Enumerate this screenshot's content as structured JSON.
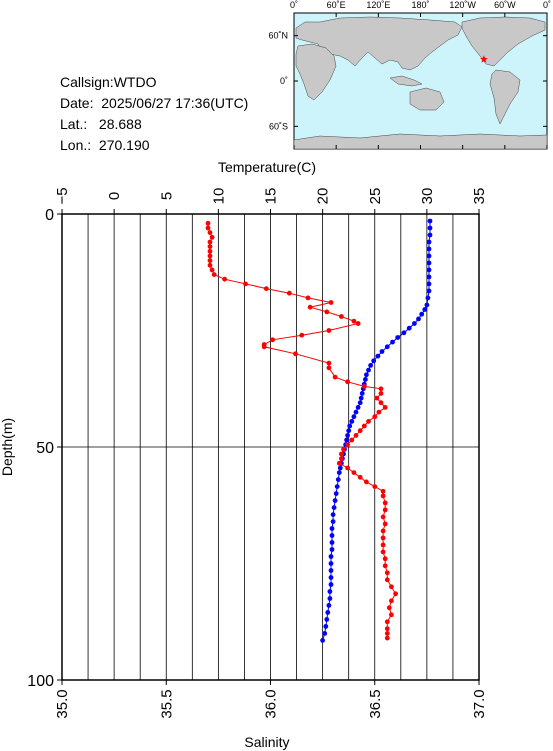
{
  "header": {
    "callsign_label": "Callsign:",
    "callsign": "WTDO",
    "date_label": "Date:",
    "date": "2025/06/27 17:36(UTC)",
    "lat_label": "Lat.:",
    "lat": "28.688",
    "lon_label": "Lon.:",
    "lon": "270.190"
  },
  "map": {
    "lon_ticks": [
      "0˚",
      "60˚E",
      "120˚E",
      "180˚",
      "120˚W",
      "60˚W",
      "0˚"
    ],
    "lat_ticks": [
      "60˚N",
      "0˚",
      "60˚S"
    ],
    "ocean_color": "#cdf3fb",
    "land_color": "#c8c8c8",
    "marker_color": "#ff0000",
    "marker_lat": 28.688,
    "marker_lon": 270.19
  },
  "chart_data": {
    "type": "line",
    "xlabel_top": "Temperature(C)",
    "xlabel_bottom": "Salinity",
    "ylabel": "Depth(m)",
    "temperature_ticks": [
      "−5",
      "0",
      "5",
      "10",
      "15",
      "20",
      "25",
      "30",
      "35"
    ],
    "salinity_ticks": [
      "35.0",
      "35.5",
      "36.0",
      "36.5",
      "37.0"
    ],
    "depth_ticks": [
      "0",
      "50",
      "100"
    ],
    "temperature_range": [
      -5,
      35
    ],
    "salinity_range": [
      35.0,
      37.0
    ],
    "depth_range": [
      0,
      100
    ],
    "grid": true,
    "series": [
      {
        "name": "Temperature",
        "axis": "temperature",
        "color": "#0000ff",
        "points": [
          [
            30.3,
            1.5
          ],
          [
            30.3,
            3
          ],
          [
            30.3,
            4.5
          ],
          [
            30.2,
            6
          ],
          [
            30.2,
            7.5
          ],
          [
            30.2,
            9
          ],
          [
            30.2,
            10.5
          ],
          [
            30.2,
            12
          ],
          [
            30.2,
            13.5
          ],
          [
            30.2,
            15
          ],
          [
            30.2,
            16.5
          ],
          [
            30.1,
            18
          ],
          [
            30.0,
            19.5
          ],
          [
            29.8,
            20.5
          ],
          [
            29.5,
            21.5
          ],
          [
            29.2,
            22.5
          ],
          [
            28.8,
            23.5
          ],
          [
            28.3,
            24.5
          ],
          [
            27.8,
            25.5
          ],
          [
            27.2,
            26.5
          ],
          [
            26.7,
            27.5
          ],
          [
            26.2,
            28.5
          ],
          [
            25.7,
            29.5
          ],
          [
            25.3,
            30.5
          ],
          [
            24.9,
            31.5
          ],
          [
            24.6,
            32.5
          ],
          [
            24.4,
            33.5
          ],
          [
            24.2,
            34.5
          ],
          [
            24.1,
            35.5
          ],
          [
            24.0,
            36.5
          ],
          [
            23.9,
            37.5
          ],
          [
            23.8,
            38.5
          ],
          [
            23.7,
            39.5
          ],
          [
            23.6,
            40.5
          ],
          [
            23.4,
            41.5
          ],
          [
            23.2,
            42.5
          ],
          [
            23.0,
            43.5
          ],
          [
            22.8,
            44.5
          ],
          [
            22.6,
            45.5
          ],
          [
            22.5,
            46.5
          ],
          [
            22.4,
            47.5
          ],
          [
            22.3,
            48.5
          ],
          [
            22.2,
            49.5
          ],
          [
            22.1,
            50.5
          ],
          [
            22.0,
            51.5
          ],
          [
            21.9,
            52.5
          ],
          [
            21.8,
            53.5
          ],
          [
            21.7,
            54.5
          ],
          [
            21.6,
            55.5
          ],
          [
            21.5,
            57
          ],
          [
            21.4,
            58.5
          ],
          [
            21.3,
            60
          ],
          [
            21.2,
            61.5
          ],
          [
            21.1,
            63
          ],
          [
            21.0,
            64.5
          ],
          [
            21.0,
            66
          ],
          [
            20.9,
            67.5
          ],
          [
            20.9,
            69
          ],
          [
            20.9,
            70.5
          ],
          [
            20.9,
            72
          ],
          [
            20.8,
            73.5
          ],
          [
            20.8,
            75
          ],
          [
            20.8,
            76.5
          ],
          [
            20.8,
            78
          ],
          [
            20.8,
            79.5
          ],
          [
            20.7,
            81
          ],
          [
            20.7,
            82.5
          ],
          [
            20.6,
            84
          ],
          [
            20.5,
            85.5
          ],
          [
            20.4,
            87
          ],
          [
            20.3,
            88.5
          ],
          [
            20.2,
            90
          ],
          [
            20.0,
            91.5
          ]
        ]
      },
      {
        "name": "Salinity",
        "axis": "salinity",
        "color": "#ff0000",
        "points": [
          [
            35.7,
            2
          ],
          [
            35.7,
            3
          ],
          [
            35.71,
            4
          ],
          [
            35.72,
            5
          ],
          [
            35.71,
            6
          ],
          [
            35.71,
            7
          ],
          [
            35.71,
            8
          ],
          [
            35.71,
            9
          ],
          [
            35.71,
            10
          ],
          [
            35.71,
            11
          ],
          [
            35.72,
            12
          ],
          [
            35.73,
            13
          ],
          [
            35.78,
            14
          ],
          [
            35.88,
            15
          ],
          [
            35.98,
            16
          ],
          [
            36.09,
            17
          ],
          [
            36.18,
            18
          ],
          [
            36.29,
            19
          ],
          [
            36.19,
            20
          ],
          [
            36.27,
            21
          ],
          [
            36.34,
            22
          ],
          [
            36.4,
            23
          ],
          [
            36.42,
            23.5
          ],
          [
            36.28,
            25
          ],
          [
            36.15,
            26
          ],
          [
            36.01,
            27
          ],
          [
            35.97,
            28
          ],
          [
            35.97,
            28.5
          ],
          [
            36.12,
            30
          ],
          [
            36.28,
            32
          ],
          [
            36.28,
            33
          ],
          [
            36.31,
            35
          ],
          [
            36.37,
            36
          ],
          [
            36.45,
            37
          ],
          [
            36.53,
            37.5
          ],
          [
            36.53,
            38.5
          ],
          [
            36.51,
            39.5
          ],
          [
            36.53,
            40.5
          ],
          [
            36.55,
            41.5
          ],
          [
            36.52,
            42.5
          ],
          [
            36.5,
            43.5
          ],
          [
            36.47,
            44.5
          ],
          [
            36.45,
            45.5
          ],
          [
            36.43,
            46.5
          ],
          [
            36.41,
            47.5
          ],
          [
            36.39,
            48.5
          ],
          [
            36.37,
            49.5
          ],
          [
            36.35,
            50.5
          ],
          [
            36.34,
            51.5
          ],
          [
            36.34,
            52.5
          ],
          [
            36.33,
            53.5
          ],
          [
            36.37,
            54.5
          ],
          [
            36.4,
            55.5
          ],
          [
            36.43,
            56.5
          ],
          [
            36.46,
            57.5
          ],
          [
            36.5,
            58.5
          ],
          [
            36.54,
            59.5
          ],
          [
            36.54,
            60.5
          ],
          [
            36.55,
            62
          ],
          [
            36.55,
            63.5
          ],
          [
            36.54,
            65
          ],
          [
            36.55,
            66.5
          ],
          [
            36.54,
            68
          ],
          [
            36.54,
            69.5
          ],
          [
            36.54,
            71
          ],
          [
            36.54,
            72.5
          ],
          [
            36.55,
            74
          ],
          [
            36.55,
            75.5
          ],
          [
            36.56,
            77
          ],
          [
            36.56,
            78.5
          ],
          [
            36.58,
            80
          ],
          [
            36.6,
            81.5
          ],
          [
            36.58,
            83
          ],
          [
            36.57,
            84.5
          ],
          [
            36.58,
            86
          ],
          [
            36.56,
            87.5
          ],
          [
            36.56,
            89
          ],
          [
            36.56,
            90
          ],
          [
            36.56,
            91
          ]
        ]
      }
    ]
  }
}
